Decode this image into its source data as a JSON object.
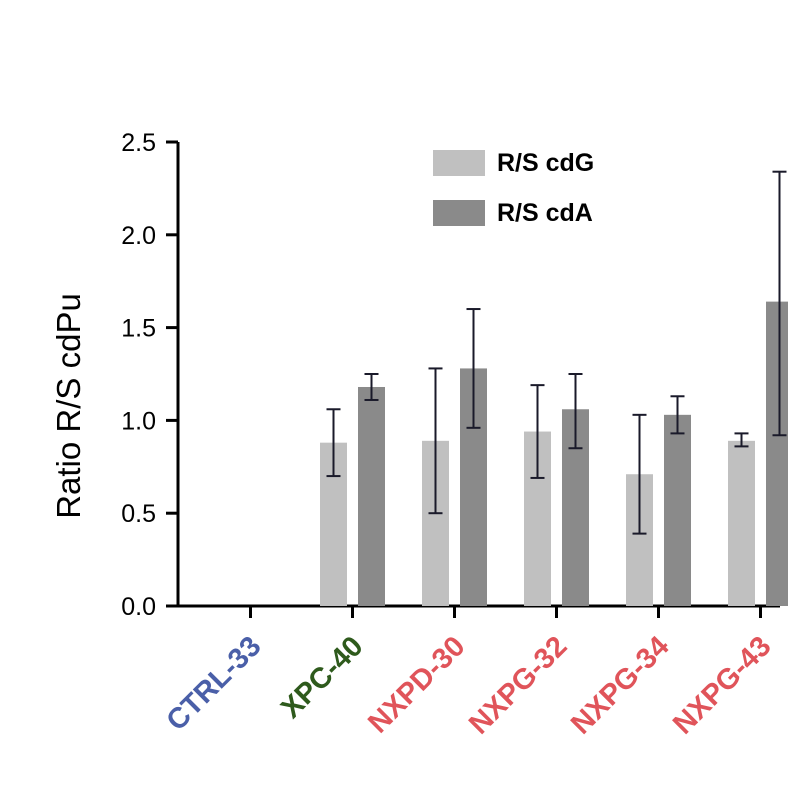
{
  "chart_data": {
    "type": "bar",
    "title": "",
    "xlabel": "",
    "ylabel": "Ratio R/S  cdPu",
    "ylim": [
      0,
      2.5
    ],
    "yticks": [
      "0.0",
      "0.5",
      "1.0",
      "1.5",
      "2.0",
      "2.5"
    ],
    "categories": [
      "CTRL-33",
      "XPC-40",
      "NXPD-30",
      "NXPG-32",
      "NXPG-34",
      "NXPG-43"
    ],
    "category_colors": [
      "#4a5fa8",
      "#2e5a1c",
      "#e0545a",
      "#e0545a",
      "#e0545a",
      "#e0545a"
    ],
    "series": [
      {
        "name": "R/S cdG",
        "color": "#c0c0c0",
        "values": [
          null,
          0.88,
          0.89,
          0.94,
          0.71,
          0.89
        ],
        "err_low": [
          null,
          0.7,
          0.5,
          0.69,
          0.39,
          0.86
        ],
        "err_high": [
          null,
          1.06,
          1.28,
          1.19,
          1.03,
          0.93
        ]
      },
      {
        "name": "R/S cdA",
        "color": "#8a8a8a",
        "values": [
          null,
          1.18,
          1.28,
          1.06,
          1.03,
          1.64
        ],
        "err_low": [
          null,
          1.11,
          0.96,
          0.85,
          0.93,
          0.92
        ],
        "err_high": [
          null,
          1.25,
          1.6,
          1.25,
          1.13,
          2.34
        ]
      }
    ],
    "legend_position": "top-right",
    "grid": false
  }
}
